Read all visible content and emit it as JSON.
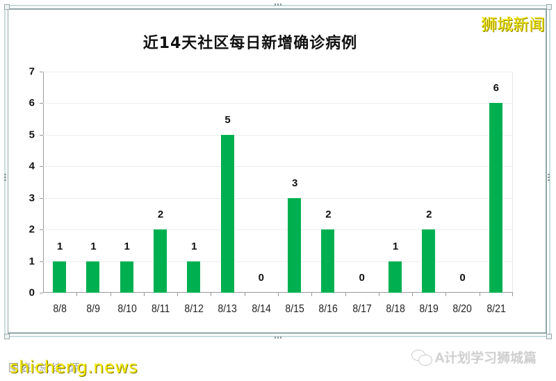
{
  "watermarks": {
    "top_right": "狮城新闻",
    "bottom_left": "shicheng.news",
    "bottom_left_ghost": "图表·总结·源",
    "bottom_right": "A计划学习狮城篇"
  },
  "colors": {
    "bar": "#00b050",
    "frame_border": "#c9dbdd",
    "watermark_yellow": "#f2e400"
  },
  "chart_data": {
    "type": "bar",
    "title": "近14天社区每日新增确诊病例",
    "xlabel": "",
    "ylabel": "",
    "categories": [
      "8/8",
      "8/9",
      "8/10",
      "8/11",
      "8/12",
      "8/13",
      "8/14",
      "8/15",
      "8/16",
      "8/17",
      "8/18",
      "8/19",
      "8/20",
      "8/21"
    ],
    "values": [
      1,
      1,
      1,
      2,
      1,
      5,
      0,
      3,
      2,
      0,
      1,
      2,
      0,
      6
    ],
    "ylim": [
      0,
      7
    ],
    "yticks": [
      0,
      1,
      2,
      3,
      4,
      5,
      6,
      7
    ],
    "grid": true,
    "legend": null,
    "data_labels": true
  }
}
